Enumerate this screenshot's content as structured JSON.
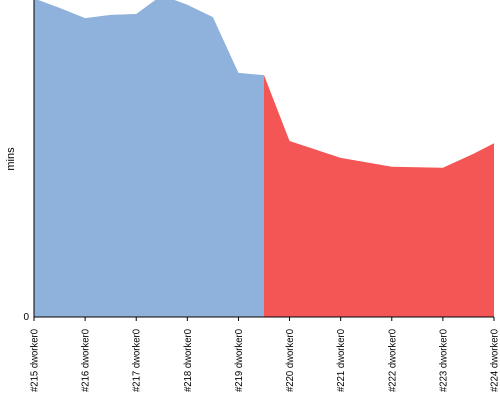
{
  "chart_data": {
    "type": "area",
    "ylabel": "mins",
    "ytick_labels": [
      "0"
    ],
    "ylim": [
      0,
      100
    ],
    "categories": [
      "#215 dworker0",
      "#216 dworker0",
      "#217 dworker0",
      "#218 dworker0",
      "#219 dworker0",
      "#220 dworker0",
      "#221 dworker0",
      "#222 dworker0",
      "#223 dworker0",
      "#224 dworker0"
    ],
    "series": [
      {
        "color": "#8fb2dc",
        "x": [
          0,
          0.5,
          1,
          1.5,
          2,
          2.5,
          3,
          3.5,
          4,
          4.5
        ],
        "values": [
          100.5,
          97.5,
          94.3,
          95.3,
          95.6,
          101.5,
          98.5,
          94.6,
          77,
          76.3
        ]
      },
      {
        "color": "#f45656",
        "x": [
          4.5,
          5,
          6,
          7,
          8,
          8.6,
          9
        ],
        "values": [
          76.3,
          55.5,
          50.2,
          47.4,
          47.1,
          51.5,
          54.8
        ]
      }
    ],
    "grid": false,
    "legend": false
  }
}
